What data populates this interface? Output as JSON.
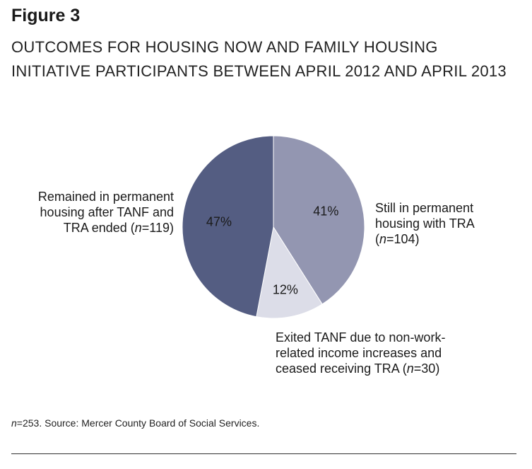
{
  "figure_label": "Figure 3",
  "title_lines": [
    "OUTCOMES FOR HOUSING NOW AND FAMILY HOUSING",
    "INITIATIVE PARTICIPANTS BETWEEN APRIL 2012 AND APRIL 2013"
  ],
  "footnote": {
    "n_var": "n",
    "text": "=253. Source: Mercer County Board of Social Services."
  },
  "colors": {
    "remained": "#545d82",
    "still": "#9396b1",
    "exited": "#dcdde8"
  },
  "chart_data": {
    "type": "pie",
    "title": "OUTCOMES FOR HOUSING NOW AND FAMILY HOUSING INITIATIVE PARTICIPANTS BETWEEN APRIL 2012 AND APRIL 2013",
    "start_angle_deg": 0,
    "direction": "clockwise",
    "slices": [
      {
        "key": "still",
        "value": 41,
        "label": "41%",
        "legend_lines": [
          "Still in permanent",
          "housing with TRA"
        ],
        "count_prefix": "(",
        "n_var": "n",
        "count_text": "=104)"
      },
      {
        "key": "exited",
        "value": 12,
        "label": "12%",
        "legend_lines": [
          "Exited TANF due to non-work-",
          "related income increases and"
        ],
        "count_prefix": "ceased receiving TRA (",
        "n_var": "n",
        "count_text": "=30)"
      },
      {
        "key": "remained",
        "value": 47,
        "label": "47%",
        "legend_lines": [
          "Remained in permanent",
          "housing after TANF and"
        ],
        "count_prefix": "TRA ended (",
        "n_var": "n",
        "count_text": "=119)"
      }
    ]
  }
}
